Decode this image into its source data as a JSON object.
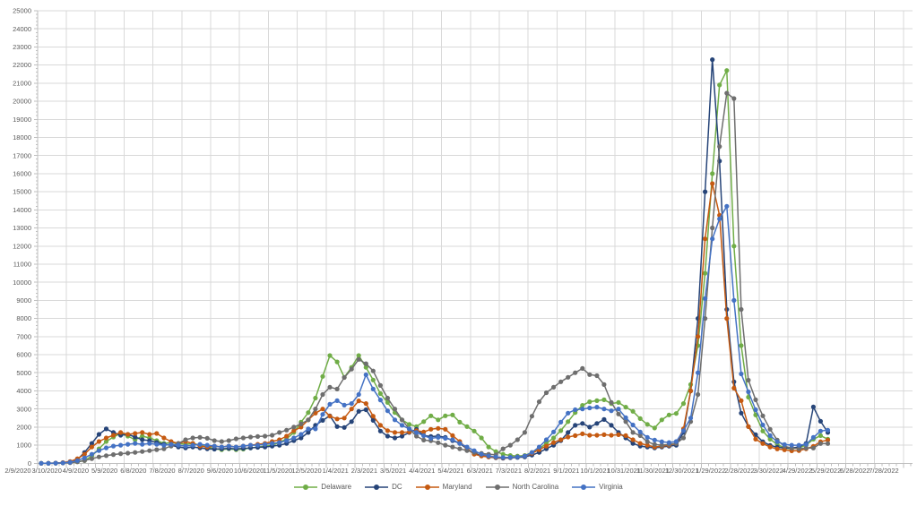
{
  "chart_data": {
    "type": "line",
    "title": "",
    "legend_position": "bottom",
    "grid": true,
    "ylim": [
      0,
      25000
    ],
    "y_ticks": [
      0,
      1000,
      2000,
      3000,
      4000,
      5000,
      6000,
      7000,
      8000,
      9000,
      10000,
      11000,
      12000,
      13000,
      14000,
      15000,
      16000,
      17000,
      18000,
      19000,
      20000,
      21000,
      22000,
      23000,
      24000,
      25000
    ],
    "x_labels": [
      "2/9/2020",
      "3/10/2020",
      "4/9/2020",
      "5/9/2020",
      "6/8/2020",
      "7/8/2020",
      "8/7/2020",
      "9/6/2020",
      "10/6/2020",
      "11/5/2020",
      "12/5/2020",
      "1/4/2021",
      "2/3/2021",
      "3/5/2021",
      "4/4/2021",
      "5/4/2021",
      "6/3/2021",
      "7/3/2021",
      "8/2/2021",
      "9/1/2021",
      "10/1/2021",
      "10/31/2021",
      "11/30/2021",
      "12/30/2021",
      "1/29/2022",
      "2/28/2022",
      "3/30/2022",
      "4/29/2022",
      "5/29/2022",
      "6/28/2022",
      "7/28/2022"
    ],
    "points_per_label_interval": 4,
    "series": [
      {
        "name": "Delaware",
        "color": "#70AD47",
        "values": [
          0,
          0,
          10,
          20,
          40,
          80,
          150,
          400,
          800,
          1200,
          1450,
          1650,
          1500,
          1300,
          1500,
          1400,
          1250,
          1100,
          1150,
          1100,
          1050,
          1100,
          1000,
          900,
          800,
          750,
          800,
          750,
          780,
          850,
          900,
          950,
          1000,
          1150,
          1350,
          1700,
          2270,
          2800,
          3600,
          4800,
          5950,
          5600,
          4750,
          5300,
          5950,
          5300,
          4600,
          3850,
          3360,
          2800,
          2400,
          2150,
          2030,
          2300,
          2620,
          2400,
          2620,
          2670,
          2270,
          2030,
          1780,
          1400,
          900,
          650,
          500,
          430,
          400,
          430,
          600,
          800,
          1100,
          1400,
          1800,
          2300,
          2800,
          3200,
          3400,
          3460,
          3510,
          3300,
          3360,
          3100,
          2870,
          2470,
          2150,
          1950,
          2400,
          2670,
          2750,
          3300,
          4350,
          6500,
          10500,
          16000,
          20900,
          21700,
          12000,
          6500,
          3650,
          2670,
          1780,
          1330,
          1040,
          840,
          800,
          850,
          1000,
          1330,
          1530,
          1330
        ]
      },
      {
        "name": "DC",
        "color": "#264478",
        "values": [
          0,
          0,
          10,
          30,
          80,
          200,
          600,
          1100,
          1600,
          1900,
          1700,
          1550,
          1600,
          1450,
          1300,
          1250,
          1150,
          1050,
          1000,
          900,
          850,
          900,
          850,
          800,
          780,
          800,
          820,
          800,
          820,
          850,
          880,
          900,
          950,
          1000,
          1100,
          1250,
          1400,
          1700,
          2100,
          2370,
          2620,
          2030,
          1980,
          2300,
          2870,
          2960,
          2370,
          1780,
          1500,
          1400,
          1500,
          1700,
          1880,
          1530,
          1480,
          1500,
          1430,
          1250,
          1100,
          800,
          550,
          420,
          350,
          300,
          280,
          300,
          320,
          350,
          450,
          600,
          800,
          1000,
          1250,
          1700,
          2100,
          2200,
          2000,
          2200,
          2420,
          2100,
          1700,
          1400,
          1100,
          950,
          900,
          850,
          900,
          950,
          1000,
          1700,
          4000,
          8000,
          15000,
          22300,
          16700,
          8500,
          4500,
          2770,
          2030,
          1580,
          1190,
          990,
          890,
          840,
          840,
          900,
          1100,
          3110,
          2320,
          1700
        ]
      },
      {
        "name": "Maryland",
        "color": "#C55A11",
        "values": [
          0,
          5,
          15,
          40,
          100,
          250,
          500,
          900,
          1200,
          1400,
          1550,
          1700,
          1600,
          1650,
          1700,
          1600,
          1650,
          1400,
          1200,
          1100,
          1200,
          1100,
          950,
          900,
          950,
          900,
          950,
          900,
          950,
          1000,
          1050,
          1100,
          1200,
          1300,
          1500,
          1800,
          2000,
          2400,
          2770,
          3000,
          2600,
          2450,
          2500,
          3000,
          3450,
          3300,
          2600,
          2100,
          1800,
          1700,
          1700,
          1730,
          1800,
          1730,
          1880,
          1930,
          1880,
          1530,
          1200,
          800,
          500,
          400,
          350,
          320,
          300,
          320,
          350,
          400,
          550,
          750,
          950,
          1150,
          1300,
          1450,
          1530,
          1630,
          1550,
          1550,
          1580,
          1550,
          1580,
          1530,
          1300,
          1100,
          1000,
          900,
          950,
          1000,
          1100,
          1900,
          4000,
          7000,
          12400,
          15450,
          13700,
          8000,
          4150,
          3460,
          2030,
          1330,
          1090,
          900,
          790,
          740,
          690,
          700,
          800,
          940,
          1190,
          1280
        ]
      },
      {
        "name": "North Carolina",
        "color": "#6E6E6E",
        "values": [
          0,
          0,
          5,
          15,
          30,
          80,
          150,
          250,
          350,
          420,
          480,
          530,
          560,
          600,
          650,
          700,
          750,
          800,
          950,
          1100,
          1300,
          1400,
          1430,
          1380,
          1250,
          1200,
          1250,
          1350,
          1400,
          1450,
          1480,
          1500,
          1550,
          1700,
          1830,
          2000,
          2170,
          2400,
          3000,
          3800,
          4200,
          4100,
          4740,
          5200,
          5740,
          5500,
          5100,
          4300,
          3600,
          3000,
          2400,
          1900,
          1500,
          1280,
          1240,
          1140,
          1000,
          900,
          800,
          700,
          600,
          550,
          500,
          470,
          800,
          1000,
          1300,
          1700,
          2600,
          3400,
          3900,
          4200,
          4500,
          4750,
          5000,
          5240,
          4900,
          4840,
          4350,
          3360,
          2720,
          2300,
          1700,
          1530,
          1190,
          1040,
          1000,
          1050,
          1100,
          1400,
          2300,
          3800,
          8000,
          13000,
          17500,
          20450,
          20150,
          8500,
          4590,
          3510,
          2620,
          1880,
          1280,
          940,
          840,
          800,
          840,
          840,
          1090,
          1090
        ]
      },
      {
        "name": "Virginia",
        "color": "#4472C4",
        "values": [
          0,
          0,
          10,
          25,
          60,
          150,
          300,
          500,
          700,
          850,
          950,
          1000,
          1050,
          1100,
          1050,
          1100,
          1050,
          1000,
          1050,
          1000,
          950,
          1000,
          1050,
          1000,
          950,
          900,
          950,
          900,
          950,
          1000,
          1000,
          1050,
          1100,
          1150,
          1250,
          1400,
          1600,
          1900,
          1900,
          2700,
          3260,
          3460,
          3210,
          3300,
          3800,
          4890,
          4100,
          3500,
          2900,
          2400,
          2100,
          1900,
          1700,
          1530,
          1380,
          1430,
          1380,
          1300,
          1100,
          900,
          700,
          500,
          400,
          350,
          320,
          330,
          350,
          400,
          600,
          900,
          1300,
          1730,
          2270,
          2770,
          2960,
          3000,
          3060,
          3100,
          3000,
          2900,
          3000,
          2520,
          2120,
          1730,
          1430,
          1280,
          1190,
          1150,
          1200,
          1800,
          2500,
          5000,
          9100,
          12400,
          13500,
          14200,
          9000,
          4940,
          3950,
          2960,
          2120,
          1530,
          1190,
          1040,
          1000,
          1000,
          1050,
          1430,
          1780,
          1830
        ]
      }
    ]
  },
  "colors": {
    "background": "#FFFFFF",
    "gridline": "#D9D9D9",
    "axis_line": "#BFBFBF",
    "tick_label": "#595959"
  }
}
